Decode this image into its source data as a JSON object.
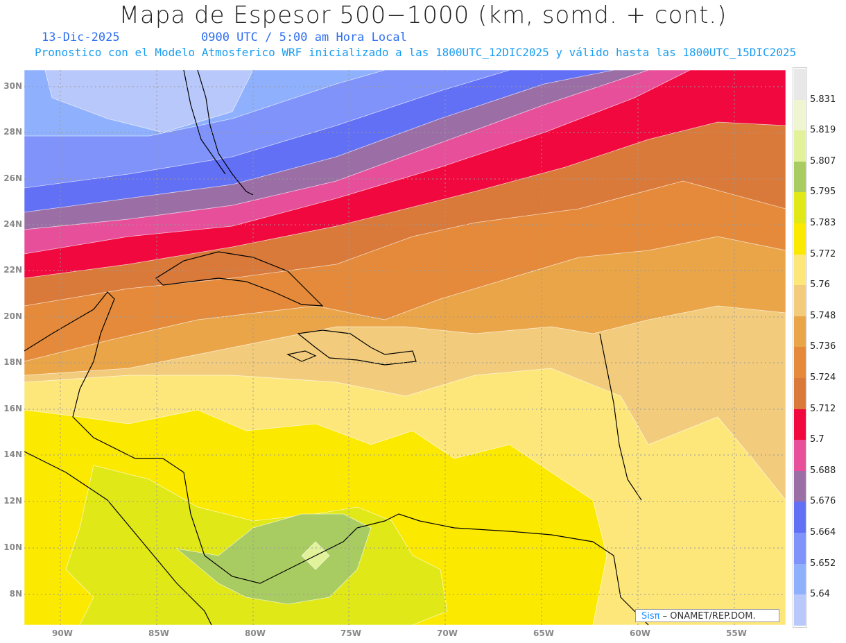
{
  "title": "Mapa de Espesor 500−1000 (km, somd. + cont.)",
  "date": "13-Dic-2025",
  "time": "0900 UTC / 5:00 am Hora Local",
  "description": "Pronostico con el Modelo Atmosferico WRF inicializado a las 1800UTC_12DIC2025 y válido hasta las  1800UTC_15DIC2025",
  "lat_labels": [
    "30N",
    "28N",
    "26N",
    "24N",
    "22N",
    "20N",
    "18N",
    "16N",
    "14N",
    "12N",
    "10N",
    "8N"
  ],
  "lon_labels": [
    "90W",
    "85W",
    "80W",
    "75W",
    "70W",
    "65W",
    "60W",
    "55W"
  ],
  "colorbar": {
    "labels": [
      "5.831",
      "5.819",
      "5.807",
      "5.795",
      "5.783",
      "5.772",
      "5.76",
      "5.748",
      "5.736",
      "5.724",
      "5.712",
      "5.7",
      "5.688",
      "5.676",
      "5.664",
      "5.652",
      "5.64"
    ],
    "colors": [
      "#e8e8e8",
      "#eef5d0",
      "#e2f29a",
      "#a9cc62",
      "#e0e817",
      "#fbe900",
      "#fde77b",
      "#f2cc7c",
      "#eaa549",
      "#e48a3a",
      "#d97a3b",
      "#f0083e",
      "#e74f9b",
      "#9b6fa6",
      "#6270f5",
      "#7f93fb",
      "#8eb0fd",
      "#b9c8fb"
    ]
  },
  "credit": {
    "logo": "Sisπ",
    "text": " –  ONAMET/REP.DOM."
  }
}
